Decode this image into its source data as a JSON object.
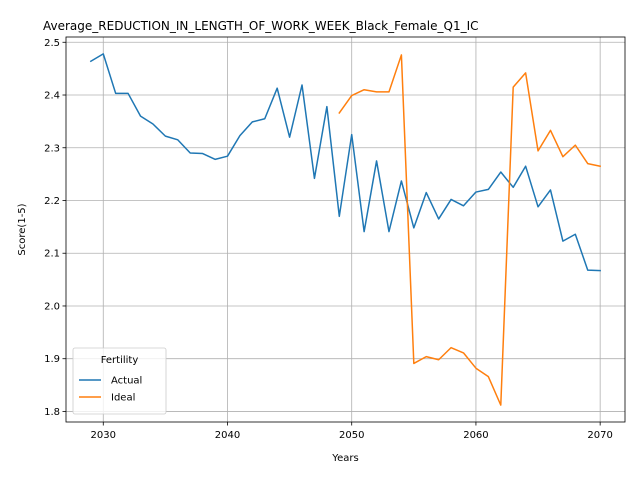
{
  "chart_data": {
    "type": "line",
    "title": "Average_REDUCTION_IN_LENGTH_OF_WORK_WEEK_Black_Female_Q1_IC",
    "xlabel": "Years",
    "ylabel": "Score(1-5)",
    "xlim": [
      2027,
      2072
    ],
    "ylim": [
      1.78,
      2.51
    ],
    "xticks": [
      2030,
      2040,
      2050,
      2060,
      2070
    ],
    "yticks": [
      1.8,
      1.9,
      2.0,
      2.1,
      2.2,
      2.3,
      2.4,
      2.5
    ],
    "grid": true,
    "legend": {
      "title": "Fertility",
      "placement": "lower-left"
    },
    "series": [
      {
        "name": "Actual",
        "color": "#1f77b4",
        "x": [
          2029,
          2030,
          2031,
          2032,
          2033,
          2034,
          2035,
          2036,
          2037,
          2038,
          2039,
          2040,
          2041,
          2042,
          2043,
          2044,
          2045,
          2046,
          2047,
          2048,
          2049,
          2050,
          2051,
          2052,
          2053,
          2054,
          2055,
          2056,
          2057,
          2058,
          2059,
          2060,
          2061,
          2062,
          2063,
          2064,
          2065,
          2066,
          2067,
          2068,
          2069,
          2070
        ],
        "y": [
          2.464,
          2.478,
          2.403,
          2.403,
          2.36,
          2.345,
          2.322,
          2.315,
          2.29,
          2.289,
          2.278,
          2.284,
          2.323,
          2.349,
          2.355,
          2.413,
          2.32,
          2.419,
          2.242,
          2.378,
          2.17,
          2.325,
          2.141,
          2.275,
          2.141,
          2.237,
          2.148,
          2.215,
          2.165,
          2.202,
          2.19,
          2.216,
          2.221,
          2.254,
          2.225,
          2.265,
          2.188,
          2.22,
          2.123,
          2.136,
          2.068,
          2.067
        ]
      },
      {
        "name": "Ideal",
        "color": "#ff7f0e",
        "x": [
          2049,
          2050,
          2051,
          2052,
          2053,
          2054,
          2055,
          2056,
          2057,
          2058,
          2059,
          2060,
          2061,
          2062,
          2063,
          2064,
          2065,
          2066,
          2067,
          2068,
          2069,
          2070
        ],
        "y": [
          2.366,
          2.399,
          2.41,
          2.406,
          2.406,
          2.476,
          1.891,
          1.904,
          1.898,
          1.921,
          1.911,
          1.882,
          1.866,
          1.812,
          2.415,
          2.442,
          2.294,
          2.333,
          2.283,
          2.305,
          2.27,
          2.265
        ]
      }
    ]
  }
}
